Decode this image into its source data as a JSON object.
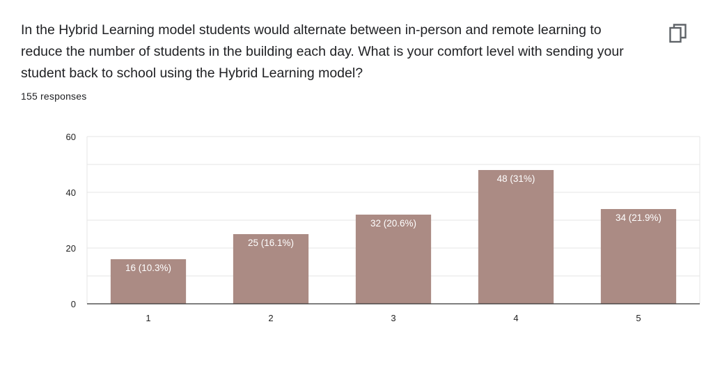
{
  "question": {
    "title": "In the Hybrid Learning model students would alternate between in-person and remote learning to reduce the number of students in the building each day. What is your comfort level with sending your student back to school using the Hybrid Learning model?",
    "response_count": "155 responses"
  },
  "toolbar": {
    "copy_icon": "copy-icon"
  },
  "colors": {
    "bar": "#ab8b84",
    "grid": "#e6e6e6",
    "axis": "#333333",
    "bar_label": "#ffffff"
  },
  "chart_data": {
    "type": "bar",
    "categories": [
      "1",
      "2",
      "3",
      "4",
      "5"
    ],
    "values": [
      16,
      25,
      32,
      48,
      34
    ],
    "data_labels": [
      "16 (10.3%)",
      "25 (16.1%)",
      "32 (20.6%)",
      "48 (31%)",
      "34 (21.9%)"
    ],
    "ylim": [
      0,
      60
    ],
    "yticks": [
      "0",
      "20",
      "40",
      "60"
    ],
    "ytick_values": [
      0,
      20,
      40,
      60
    ],
    "grid": true,
    "title": "",
    "xlabel": "",
    "ylabel": ""
  }
}
